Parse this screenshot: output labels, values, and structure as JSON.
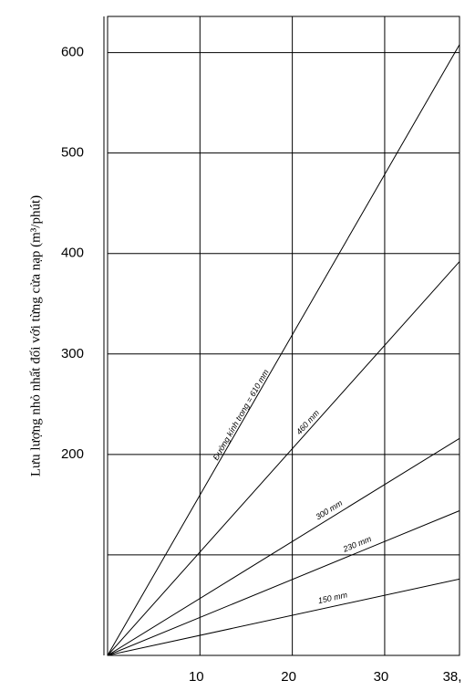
{
  "chart_data": {
    "type": "line",
    "y_label": "Lưu lượng nhỏ nhất đối với từng cửa nạp (m³/phút)",
    "xlim": [
      0,
      38.1
    ],
    "ylim": [
      0,
      636
    ],
    "xticks": [
      10,
      20,
      30,
      {
        "value": 38.1,
        "label": "38,"
      }
    ],
    "yticks": [
      {
        "value": 100,
        "label": null
      },
      200,
      300,
      400,
      500,
      600
    ],
    "grid": true,
    "color": "#000000",
    "series": [
      {
        "name": "Đường kính trong = 610 mm",
        "x": [
          0,
          38.1
        ],
        "values": [
          0,
          608
        ]
      },
      {
        "name": "460 mm",
        "x": [
          0,
          38.1
        ],
        "values": [
          0,
          392
        ]
      },
      {
        "name": "300 mm",
        "x": [
          0,
          38.1
        ],
        "values": [
          0,
          216
        ]
      },
      {
        "name": "230 mm",
        "x": [
          0,
          38.1
        ],
        "values": [
          0,
          144
        ]
      },
      {
        "name": "150 mm",
        "x": [
          0,
          38.1
        ],
        "values": [
          0,
          76
        ]
      }
    ]
  }
}
